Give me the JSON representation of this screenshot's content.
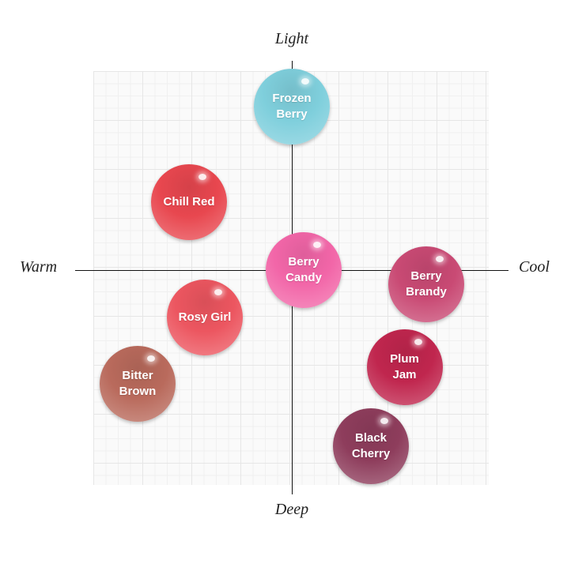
{
  "axes": {
    "top": "Light",
    "bottom": "Deep",
    "left": "Warm",
    "right": "Cool"
  },
  "chart_data": {
    "type": "scatter",
    "xlim": [
      -10,
      10
    ],
    "ylim": [
      -10,
      10
    ],
    "grid": true,
    "points": [
      {
        "name": "Frozen Berry",
        "x": 0.0,
        "y": 7.9,
        "color": "#7fcfdc"
      },
      {
        "name": "Chill Red",
        "x": -5.2,
        "y": 3.3,
        "color": "#e8474f"
      },
      {
        "name": "Berry Candy",
        "x": 0.6,
        "y": 0.0,
        "color": "#f266a8"
      },
      {
        "name": "Berry Brandy",
        "x": 6.8,
        "y": -0.7,
        "color": "#c94a74"
      },
      {
        "name": "Rosy Girl",
        "x": -4.4,
        "y": -2.3,
        "color": "#ec5660"
      },
      {
        "name": "Bitter Brown",
        "x": -7.8,
        "y": -5.5,
        "color": "#b96a5c"
      },
      {
        "name": "Plum Jam",
        "x": 5.7,
        "y": -4.7,
        "color": "#c0264e"
      },
      {
        "name": "Black Cherry",
        "x": 4.0,
        "y": -8.5,
        "color": "#8e3d5c"
      }
    ]
  }
}
